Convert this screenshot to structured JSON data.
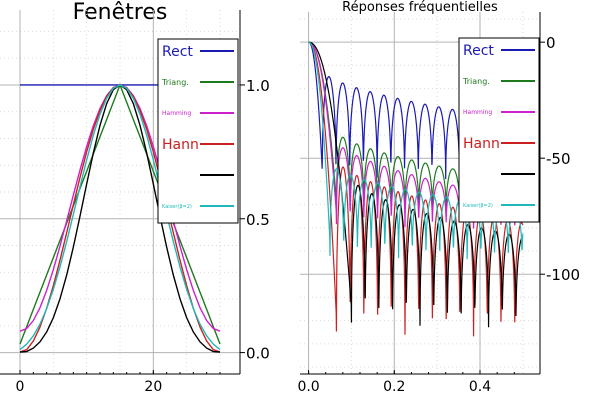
{
  "chart_data": [
    {
      "type": "line",
      "title": "Fenêtres",
      "xlabel": "",
      "ylabel": "",
      "xlim": [
        -3,
        33
      ],
      "ylim": [
        -0.08,
        1.28
      ],
      "x_ticks": [
        0,
        20
      ],
      "y_ticks": [
        0.0,
        0.5,
        1.0
      ],
      "y_tick_labels": [
        "0.0",
        "0.5",
        "1.0"
      ],
      "x_tick_labels": [
        "0",
        "20"
      ],
      "y_axis_side": "right",
      "grid": true,
      "legend_position": "top-right",
      "n": 31,
      "series": [
        {
          "name": "Rect",
          "color": "#1a1ab5",
          "kind": "rect"
        },
        {
          "name": "Triang.",
          "color": "#1f7a1f",
          "kind": "triang"
        },
        {
          "name": "Hamming",
          "color": "#cc22cc",
          "kind": "hamming"
        },
        {
          "name": "Hann",
          "color": "#cc2020",
          "kind": "hann"
        },
        {
          "name": "",
          "color": "#000000",
          "kind": "blackman"
        },
        {
          "name": "Kaiser(β=2)",
          "color": "#20b8b8",
          "kind": "kaiser"
        }
      ]
    },
    {
      "type": "line",
      "title": "Réponses fréquentielles",
      "xlabel": "",
      "ylabel": "",
      "xlim": [
        -0.02,
        0.54
      ],
      "ylim": [
        -143,
        13
      ],
      "x_ticks": [
        0.0,
        0.2,
        0.4
      ],
      "x_tick_labels": [
        "0.0",
        "0.2",
        "0.4"
      ],
      "y_ticks": [
        0,
        -50,
        -100
      ],
      "y_tick_labels": [
        "0",
        "-50",
        "-100"
      ],
      "y_axis_side": "right",
      "grid": true,
      "legend_position": "top-right",
      "series": [
        {
          "name": "Rect",
          "color": "#1a1ab5",
          "first_null": 0.032,
          "spacing": 0.032,
          "envelope_at_first_lobe": -12,
          "envelope_at_end": -34,
          "spike_depth": -62,
          "drop": [
            0.025,
            -62
          ]
        },
        {
          "name": "Triang.",
          "color": "#1f7a1f",
          "first_null": 0.065,
          "spacing": 0.032,
          "envelope_at_first_lobe": -38,
          "envelope_at_end": -60,
          "spike_depth": -76
        },
        {
          "name": "Hamming",
          "color": "#cc22cc",
          "first_null": 0.065,
          "spacing": 0.032,
          "envelope_at_first_lobe": -42,
          "envelope_at_end": -68,
          "spike_depth": -82
        },
        {
          "name": "Hann",
          "color": "#cc2020",
          "first_null": 0.065,
          "spacing": 0.032,
          "envelope_at_first_lobe": -50,
          "envelope_at_end": -78,
          "spike_depth": -132
        },
        {
          "name": "",
          "color": "#000000",
          "first_null": 0.1,
          "spacing": 0.032,
          "envelope_at_first_lobe": -58,
          "envelope_at_end": -84,
          "spike_depth": -127
        },
        {
          "name": "Kaiser(β=2)",
          "color": "#20b8b8",
          "first_null": 0.05,
          "spacing": 0.032,
          "envelope_at_first_lobe": -52,
          "envelope_at_end": -72,
          "spike_depth": -96
        }
      ]
    }
  ]
}
